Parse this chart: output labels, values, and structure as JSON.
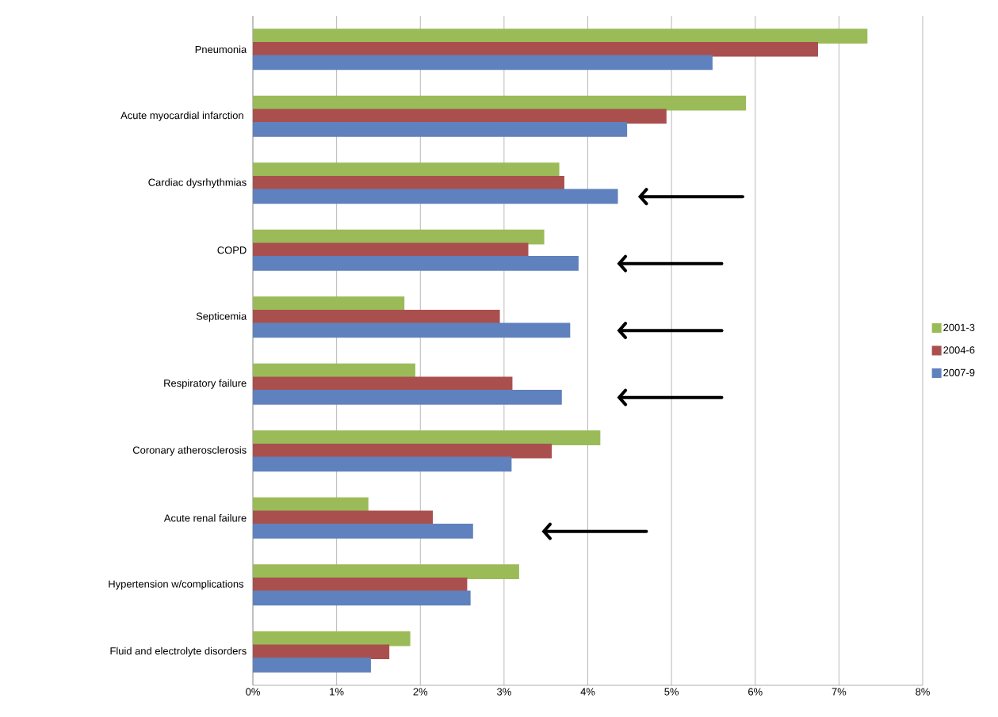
{
  "chart_data": {
    "type": "bar",
    "orientation": "horizontal",
    "categories": [
      "Pneumonia",
      "Acute myocardial infarction ",
      "Cardiac dysrhythmias",
      "COPD",
      "Septicemia",
      "Respiratory failure",
      "Coronary atherosclerosis",
      "Acute renal failure",
      "Hypertension w/complications ",
      "Fluid and electrolyte disorders"
    ],
    "series": [
      {
        "name": "2001-3",
        "color": "#9bbb59",
        "values": [
          7.34,
          5.89,
          3.66,
          3.48,
          1.81,
          1.94,
          4.15,
          1.38,
          3.18,
          1.88
        ]
      },
      {
        "name": "2004-6",
        "color": "#a9504e",
        "values": [
          6.75,
          4.94,
          3.72,
          3.29,
          2.95,
          3.1,
          3.57,
          2.15,
          2.56,
          1.63
        ]
      },
      {
        "name": "2007-9",
        "color": "#5f81bd",
        "values": [
          5.49,
          4.47,
          4.36,
          3.89,
          3.79,
          3.69,
          3.09,
          2.63,
          2.6,
          1.41
        ]
      }
    ],
    "xlim": [
      0,
      8
    ],
    "xticks": [
      {
        "value": 0,
        "label": "0%"
      },
      {
        "value": 1,
        "label": "1%"
      },
      {
        "value": 2,
        "label": "2%"
      },
      {
        "value": 3,
        "label": "3%"
      },
      {
        "value": 4,
        "label": "4%"
      },
      {
        "value": 5,
        "label": "5%"
      },
      {
        "value": 6,
        "label": "6%"
      },
      {
        "value": 7,
        "label": "7%"
      },
      {
        "value": 8,
        "label": "8%"
      }
    ],
    "grid": "x",
    "legend": "right"
  }
}
